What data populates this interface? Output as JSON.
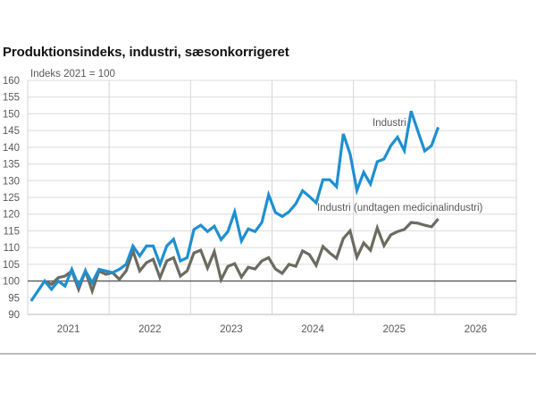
{
  "chart_data": {
    "type": "line",
    "title": "Produktionsindeks, industri, sæsonkorrigeret",
    "ylabel": "Indeks 2021 = 100",
    "xlabel": "",
    "ylim": [
      90,
      160
    ],
    "yticks": [
      90,
      95,
      100,
      105,
      110,
      115,
      120,
      125,
      130,
      135,
      140,
      145,
      150,
      155,
      160
    ],
    "xlim": [
      "2021-01",
      "2026-12"
    ],
    "xtick_labels": [
      "2021",
      "2022",
      "2023",
      "2024",
      "2025",
      "2026"
    ],
    "reference_line": 100,
    "grid": true,
    "start_month": "2021-01",
    "series": [
      {
        "name": "Industri",
        "color": "#1f8fd0",
        "values": [
          94,
          97,
          100,
          97.5,
          100,
          98.5,
          103.5,
          98.5,
          103,
          99.5,
          103.5,
          103,
          102.5,
          103.5,
          105,
          110.5,
          107.5,
          110.5,
          110.5,
          105,
          110.5,
          112.5,
          106,
          107,
          115.4,
          116.7,
          114.8,
          116.4,
          112.4,
          114.8,
          120.7,
          112,
          115.6,
          114.8,
          117.5,
          125.8,
          120.5,
          119.3,
          120.7,
          123.1,
          127,
          125.3,
          123.4,
          130.3,
          130.3,
          128.2,
          144,
          138,
          127.1,
          132.5,
          129,
          135.7,
          136.5,
          140.5,
          143,
          139,
          150.8,
          144.8,
          138.9,
          140.5,
          146
        ]
      },
      {
        "name": "Industri (undtagen medicinalindustri)",
        "color": "#6b6b60",
        "values": [
          null,
          null,
          100,
          99,
          101,
          101.5,
          103,
          97.5,
          103,
          97,
          103,
          102,
          102.5,
          100.5,
          103,
          109,
          103,
          105.5,
          106.5,
          101,
          106,
          107,
          101.5,
          103,
          108.4,
          109.2,
          103.9,
          108.8,
          100.4,
          104.4,
          105.2,
          101.2,
          104.1,
          103.6,
          106,
          107,
          103.6,
          102.3,
          105,
          104.4,
          109,
          107.9,
          104.7,
          110.3,
          108.4,
          106.8,
          112.7,
          115,
          107.1,
          111.4,
          109.2,
          115.9,
          110.6,
          113.8,
          114.8,
          115.4,
          117.5,
          117.3,
          116.7,
          116.2,
          118.6
        ]
      }
    ],
    "annotations": [
      {
        "text": "Industri",
        "series": "Industri"
      },
      {
        "text": "Industri (undtagen medicinalindustri)",
        "series": "Industri (undtagen medicinalindustri)"
      }
    ]
  }
}
